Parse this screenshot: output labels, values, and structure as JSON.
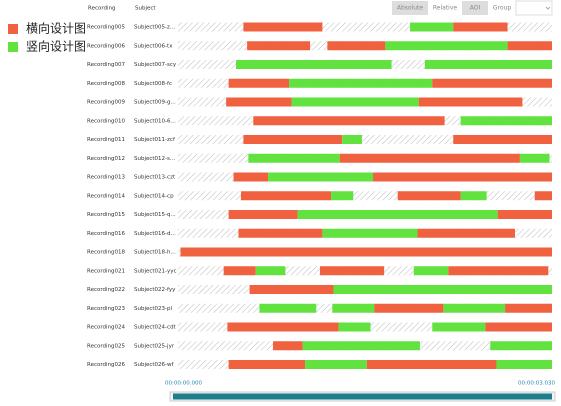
{
  "legend": [
    {
      "label": "横向设计图",
      "color": "#f0623f"
    },
    {
      "label": "竖向设计图",
      "color": "#62e23f"
    }
  ],
  "header": {
    "recording": "Recording",
    "subject": "Subject",
    "buttons": [
      "Absolute",
      "Relative",
      "AOI",
      "Group"
    ]
  },
  "timeline": {
    "start": 0,
    "end": 3.03,
    "start_label": "00:00:00.000",
    "end_label": "00:00:03.030"
  },
  "rows": [
    {
      "recording": "Recording005",
      "subject": "Subject005-z...",
      "segments": [
        [
          0.53,
          1.17,
          0
        ],
        [
          1.88,
          2.23,
          1
        ],
        [
          2.23,
          2.67,
          0
        ]
      ]
    },
    {
      "recording": "Recording006",
      "subject": "Subject006-tx",
      "segments": [
        [
          0.56,
          1.07,
          0
        ],
        [
          1.21,
          1.68,
          0
        ],
        [
          1.68,
          2.67,
          1
        ],
        [
          2.67,
          3.03,
          0
        ]
      ]
    },
    {
      "recording": "Recording007",
      "subject": "Subject007-scy",
      "segments": [
        [
          0.47,
          1.73,
          1
        ],
        [
          2.0,
          3.03,
          1
        ]
      ]
    },
    {
      "recording": "Recording008",
      "subject": "Subject008-fc",
      "segments": [
        [
          0.41,
          0.9,
          0
        ],
        [
          0.9,
          2.06,
          1
        ],
        [
          2.06,
          3.03,
          0
        ]
      ]
    },
    {
      "recording": "Recording009",
      "subject": "Subject009-g...",
      "segments": [
        [
          0.39,
          0.92,
          0
        ],
        [
          0.92,
          1.95,
          1
        ],
        [
          1.95,
          2.79,
          0
        ]
      ]
    },
    {
      "recording": "Recording010",
      "subject": "Subject010-6...",
      "segments": [
        [
          0.61,
          2.16,
          0
        ],
        [
          2.29,
          3.03,
          1
        ]
      ]
    },
    {
      "recording": "Recording011",
      "subject": "Subject011-zcf",
      "segments": [
        [
          0.53,
          1.33,
          0
        ],
        [
          1.33,
          1.49,
          1
        ],
        [
          2.23,
          3.03,
          0
        ]
      ]
    },
    {
      "recording": "Recording012",
      "subject": "Subject012-s...",
      "segments": [
        [
          0.57,
          1.31,
          1
        ],
        [
          1.31,
          2.77,
          0
        ],
        [
          2.77,
          3.01,
          1
        ]
      ]
    },
    {
      "recording": "Recording013",
      "subject": "Subject013-czt",
      "segments": [
        [
          0.45,
          0.73,
          0
        ],
        [
          0.73,
          1.58,
          1
        ],
        [
          1.58,
          3.03,
          0
        ]
      ]
    },
    {
      "recording": "Recording014",
      "subject": "Subject014-cp",
      "segments": [
        [
          0.51,
          1.24,
          0
        ],
        [
          1.24,
          1.42,
          1
        ],
        [
          1.78,
          2.29,
          0
        ],
        [
          2.29,
          2.5,
          1
        ],
        [
          2.89,
          3.03,
          0
        ]
      ]
    },
    {
      "recording": "Recording015",
      "subject": "Subject015-q...",
      "segments": [
        [
          0.41,
          0.97,
          0
        ],
        [
          0.97,
          2.59,
          1
        ],
        [
          2.59,
          3.03,
          0
        ]
      ]
    },
    {
      "recording": "Recording016",
      "subject": "Subject016-d...",
      "segments": [
        [
          0.49,
          1.17,
          0
        ],
        [
          1.17,
          1.94,
          1
        ],
        [
          1.94,
          2.73,
          0
        ]
      ]
    },
    {
      "recording": "Recording018",
      "subject": "Subject018-h...",
      "segments": [
        [
          0.02,
          3.03,
          0
        ]
      ]
    },
    {
      "recording": "Recording021",
      "subject": "Subject021-yyc",
      "segments": [
        [
          0.37,
          0.63,
          0
        ],
        [
          0.63,
          0.87,
          1
        ],
        [
          1.15,
          1.67,
          0
        ],
        [
          1.91,
          2.19,
          1
        ],
        [
          2.19,
          3.0,
          0
        ]
      ]
    },
    {
      "recording": "Recording022",
      "subject": "Subject022-fyy",
      "segments": [
        [
          0.58,
          1.26,
          0
        ],
        [
          1.26,
          3.03,
          1
        ]
      ]
    },
    {
      "recording": "Recording023",
      "subject": "Subject023-pl",
      "segments": [
        [
          0.66,
          1.12,
          1
        ],
        [
          1.25,
          1.59,
          1
        ],
        [
          1.59,
          2.15,
          0
        ],
        [
          2.15,
          2.65,
          1
        ],
        [
          2.65,
          3.03,
          0
        ]
      ]
    },
    {
      "recording": "Recording024",
      "subject": "Subject024-cdt",
      "segments": [
        [
          0.4,
          1.3,
          0
        ],
        [
          1.3,
          1.56,
          1
        ],
        [
          2.06,
          2.49,
          1
        ],
        [
          2.49,
          3.03,
          0
        ]
      ]
    },
    {
      "recording": "Recording025",
      "subject": "Subject025-jyr",
      "segments": [
        [
          0.77,
          1.01,
          0
        ],
        [
          1.01,
          1.96,
          1
        ],
        [
          2.53,
          3.03,
          1
        ]
      ]
    },
    {
      "recording": "Recording026",
      "subject": "Subject026-wf",
      "segments": [
        [
          0.41,
          1.03,
          0
        ],
        [
          1.03,
          1.53,
          1
        ],
        [
          1.53,
          2.58,
          0
        ],
        [
          2.58,
          3.03,
          1
        ]
      ]
    }
  ]
}
